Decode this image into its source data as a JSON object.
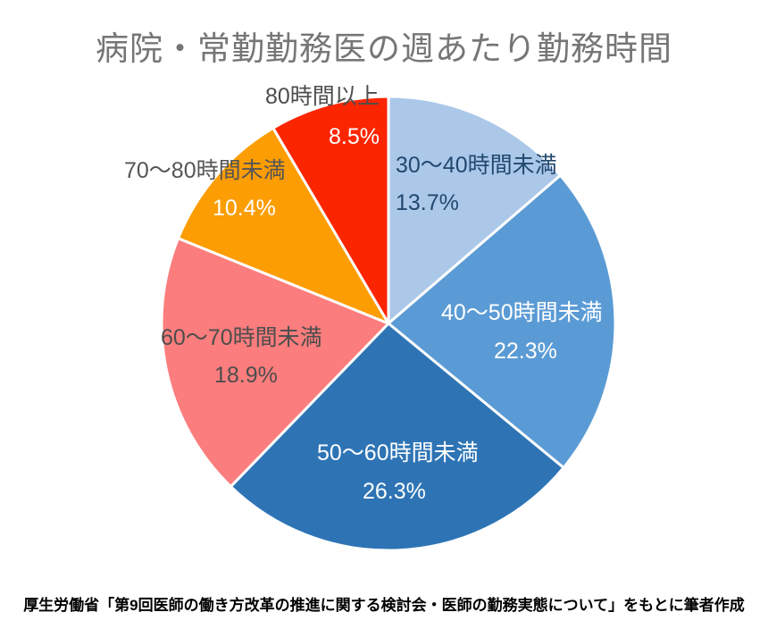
{
  "title": "病院・常勤勤務医の週あたり勤務時間",
  "caption": "厚生労働省「第9回医師の働き方改革の推進に関する検討会・医師の勤務実態について」をもとに筆者作成",
  "chart_data": {
    "type": "pie",
    "title": "病院・常勤勤務医の週あたり勤務時間",
    "unit": "%",
    "start_angle_deg": 0,
    "direction": "clockwise",
    "legend": "none",
    "categories": [
      "30～40時間未満",
      "40～50時間未満",
      "50～60時間未満",
      "60～70時間未満",
      "70～80時間未満",
      "80時間以上"
    ],
    "values": [
      13.7,
      22.3,
      26.3,
      18.9,
      10.4,
      8.5
    ],
    "slices": [
      {
        "label": "30～40時間未満",
        "value": 13.7,
        "display": "13.7%",
        "color": "#ABC8E9",
        "cat_label_color": "#21486E",
        "pct_label_color": "#21486E"
      },
      {
        "label": "40～50時間未満",
        "value": 22.3,
        "display": "22.3%",
        "color": "#5B9BD5",
        "cat_label_color": "#FFFFFF",
        "pct_label_color": "#FFFFFF"
      },
      {
        "label": "50～60時間未満",
        "value": 26.3,
        "display": "26.3%",
        "color": "#2E74B5",
        "cat_label_color": "#FFFFFF",
        "pct_label_color": "#FFFFFF"
      },
      {
        "label": "60～70時間未満",
        "value": 18.9,
        "display": "18.9%",
        "color": "#FB7D7D",
        "cat_label_color": "#4D4D4D",
        "pct_label_color": "#4D4D4D"
      },
      {
        "label": "70～80時間未満",
        "value": 10.4,
        "display": "10.4%",
        "color": "#FC9D03",
        "cat_label_color": "#555555",
        "pct_label_color": "#FFFFFF"
      },
      {
        "label": "80時間以上",
        "value": 8.5,
        "display": "8.5%",
        "color": "#FB2500",
        "cat_label_color": "#4D4D4D",
        "pct_label_color": "#FFFFFF"
      }
    ],
    "source_note": "厚生労働省「第9回医師の働き方改革の推進に関する検討会・医師の勤務実態について」をもとに筆者作成",
    "stroke_color": "#FFFFFF"
  }
}
